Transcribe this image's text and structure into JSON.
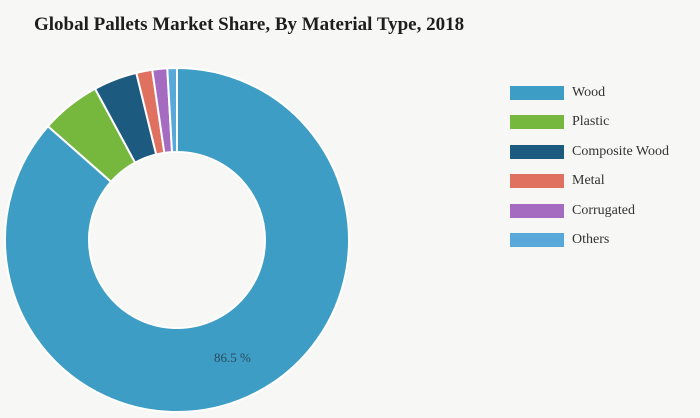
{
  "chart_data": {
    "type": "pie",
    "title": "Global Pallets Market Share, By Material Type, 2018",
    "categories": [
      "Wood",
      "Plastic",
      "Composite Wood",
      "Metal",
      "Corrugated",
      "Others"
    ],
    "values": [
      86.5,
      5.6,
      4.1,
      1.5,
      1.4,
      0.9
    ],
    "colors": [
      "#3e9dc4",
      "#76b73e",
      "#1c5a7f",
      "#e07060",
      "#a46bc1",
      "#58a9d9"
    ],
    "data_labels": [
      {
        "category": "Wood",
        "text": "86.5 %"
      }
    ],
    "legend_position": "right"
  }
}
